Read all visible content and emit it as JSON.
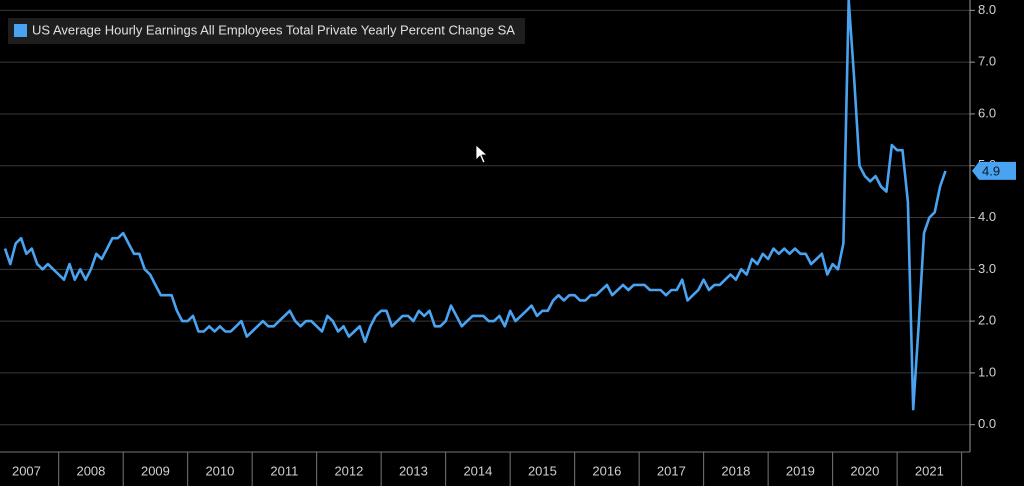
{
  "chart_data": {
    "type": "line",
    "series": [
      {
        "name": "US Average Hourly Earnings All Employees Total Private Yearly Percent Change SA",
        "color": "#4aa3f0",
        "values": [
          3.4,
          3.1,
          3.5,
          3.6,
          3.3,
          3.4,
          3.1,
          3.0,
          3.1,
          3.0,
          2.9,
          2.8,
          3.1,
          2.8,
          3.0,
          2.8,
          3.0,
          3.3,
          3.2,
          3.4,
          3.6,
          3.6,
          3.7,
          3.5,
          3.3,
          3.3,
          3.0,
          2.9,
          2.7,
          2.5,
          2.5,
          2.5,
          2.2,
          2.0,
          2.0,
          2.1,
          1.8,
          1.8,
          1.9,
          1.8,
          1.9,
          1.8,
          1.8,
          1.9,
          2.0,
          1.7,
          1.8,
          1.9,
          2.0,
          1.9,
          1.9,
          2.0,
          2.1,
          2.2,
          2.0,
          1.9,
          2.0,
          2.0,
          1.9,
          1.8,
          2.1,
          2.0,
          1.8,
          1.9,
          1.7,
          1.8,
          1.9,
          1.6,
          1.9,
          2.1,
          2.2,
          2.2,
          1.9,
          2.0,
          2.1,
          2.1,
          2.0,
          2.2,
          2.1,
          2.2,
          1.9,
          1.9,
          2.0,
          2.3,
          2.1,
          1.9,
          2.0,
          2.1,
          2.1,
          2.1,
          2.0,
          2.0,
          2.1,
          1.9,
          2.2,
          2.0,
          2.1,
          2.2,
          2.3,
          2.1,
          2.2,
          2.2,
          2.4,
          2.5,
          2.4,
          2.5,
          2.5,
          2.4,
          2.4,
          2.5,
          2.5,
          2.6,
          2.7,
          2.5,
          2.6,
          2.7,
          2.6,
          2.7,
          2.7,
          2.7,
          2.6,
          2.6,
          2.6,
          2.5,
          2.6,
          2.6,
          2.8,
          2.4,
          2.5,
          2.6,
          2.8,
          2.6,
          2.7,
          2.7,
          2.8,
          2.9,
          2.8,
          3.0,
          2.9,
          3.2,
          3.1,
          3.3,
          3.2,
          3.4,
          3.3,
          3.4,
          3.3,
          3.4,
          3.3,
          3.3,
          3.1,
          3.2,
          3.3,
          2.9,
          3.1,
          3.0,
          3.5,
          8.2,
          6.7,
          5.0,
          4.8,
          4.7,
          4.8,
          4.6,
          4.5,
          5.4,
          5.3,
          5.3,
          4.3,
          0.3,
          1.9,
          3.7,
          4.0,
          4.1,
          4.6,
          4.9
        ]
      }
    ],
    "x": [
      2007.167,
      2007.25,
      2007.333,
      2007.417,
      2007.5,
      2007.583,
      2007.667,
      2007.75,
      2007.833,
      2007.917,
      2008,
      2008.083,
      2008.167,
      2008.25,
      2008.333,
      2008.417,
      2008.5,
      2008.583,
      2008.667,
      2008.75,
      2008.833,
      2008.917,
      2009,
      2009.083,
      2009.167,
      2009.25,
      2009.333,
      2009.417,
      2009.5,
      2009.583,
      2009.667,
      2009.75,
      2009.833,
      2009.917,
      2010,
      2010.083,
      2010.167,
      2010.25,
      2010.333,
      2010.417,
      2010.5,
      2010.583,
      2010.667,
      2010.75,
      2010.833,
      2010.917,
      2011,
      2011.083,
      2011.167,
      2011.25,
      2011.333,
      2011.417,
      2011.5,
      2011.583,
      2011.667,
      2011.75,
      2011.833,
      2011.917,
      2012,
      2012.083,
      2012.167,
      2012.25,
      2012.333,
      2012.417,
      2012.5,
      2012.583,
      2012.667,
      2012.75,
      2012.833,
      2012.917,
      2013,
      2013.083,
      2013.167,
      2013.25,
      2013.333,
      2013.417,
      2013.5,
      2013.583,
      2013.667,
      2013.75,
      2013.833,
      2013.917,
      2014,
      2014.083,
      2014.167,
      2014.25,
      2014.333,
      2014.417,
      2014.5,
      2014.583,
      2014.667,
      2014.75,
      2014.833,
      2014.917,
      2015,
      2015.083,
      2015.167,
      2015.25,
      2015.333,
      2015.417,
      2015.5,
      2015.583,
      2015.667,
      2015.75,
      2015.833,
      2015.917,
      2016,
      2016.083,
      2016.167,
      2016.25,
      2016.333,
      2016.417,
      2016.5,
      2016.583,
      2016.667,
      2016.75,
      2016.833,
      2016.917,
      2017,
      2017.083,
      2017.167,
      2017.25,
      2017.333,
      2017.417,
      2017.5,
      2017.583,
      2017.667,
      2017.75,
      2017.833,
      2017.917,
      2018,
      2018.083,
      2018.167,
      2018.25,
      2018.333,
      2018.417,
      2018.5,
      2018.583,
      2018.667,
      2018.75,
      2018.833,
      2018.917,
      2019,
      2019.083,
      2019.167,
      2019.25,
      2019.333,
      2019.417,
      2019.5,
      2019.583,
      2019.667,
      2019.75,
      2019.833,
      2019.917,
      2020,
      2020.083,
      2020.167,
      2020.25,
      2020.333,
      2020.417,
      2020.5,
      2020.583,
      2020.667,
      2020.75,
      2020.833,
      2020.917,
      2021,
      2021.083,
      2021.167,
      2021.25,
      2021.333,
      2021.417,
      2021.5,
      2021.583,
      2021.667,
      2021.75
    ],
    "xlim": [
      2007.09,
      2022.13
    ],
    "xticks": [
      {
        "value": 2007.5,
        "label": "2007"
      },
      {
        "value": 2008.5,
        "label": "2008"
      },
      {
        "value": 2009.5,
        "label": "2009"
      },
      {
        "value": 2010.5,
        "label": "2010"
      },
      {
        "value": 2011.5,
        "label": "2011"
      },
      {
        "value": 2012.5,
        "label": "2012"
      },
      {
        "value": 2013.5,
        "label": "2013"
      },
      {
        "value": 2014.5,
        "label": "2014"
      },
      {
        "value": 2015.5,
        "label": "2015"
      },
      {
        "value": 2016.5,
        "label": "2016"
      },
      {
        "value": 2017.5,
        "label": "2017"
      },
      {
        "value": 2018.5,
        "label": "2018"
      },
      {
        "value": 2019.5,
        "label": "2019"
      },
      {
        "value": 2020.5,
        "label": "2020"
      },
      {
        "value": 2021.5,
        "label": "2021"
      }
    ],
    "ylim": [
      -0.45,
      8.2
    ],
    "yticks": [
      {
        "value": 0,
        "label": "0.0"
      },
      {
        "value": 1,
        "label": "1.0"
      },
      {
        "value": 2,
        "label": "2.0"
      },
      {
        "value": 3,
        "label": "3.0"
      },
      {
        "value": 4,
        "label": "4.0"
      },
      {
        "value": 5,
        "label": "5.0"
      },
      {
        "value": 6,
        "label": "6.0"
      },
      {
        "value": 7,
        "label": "7.0"
      },
      {
        "value": 8,
        "label": "8.0"
      }
    ],
    "grid": true,
    "legend": "top-left",
    "y_axis_side": "right"
  }
}
